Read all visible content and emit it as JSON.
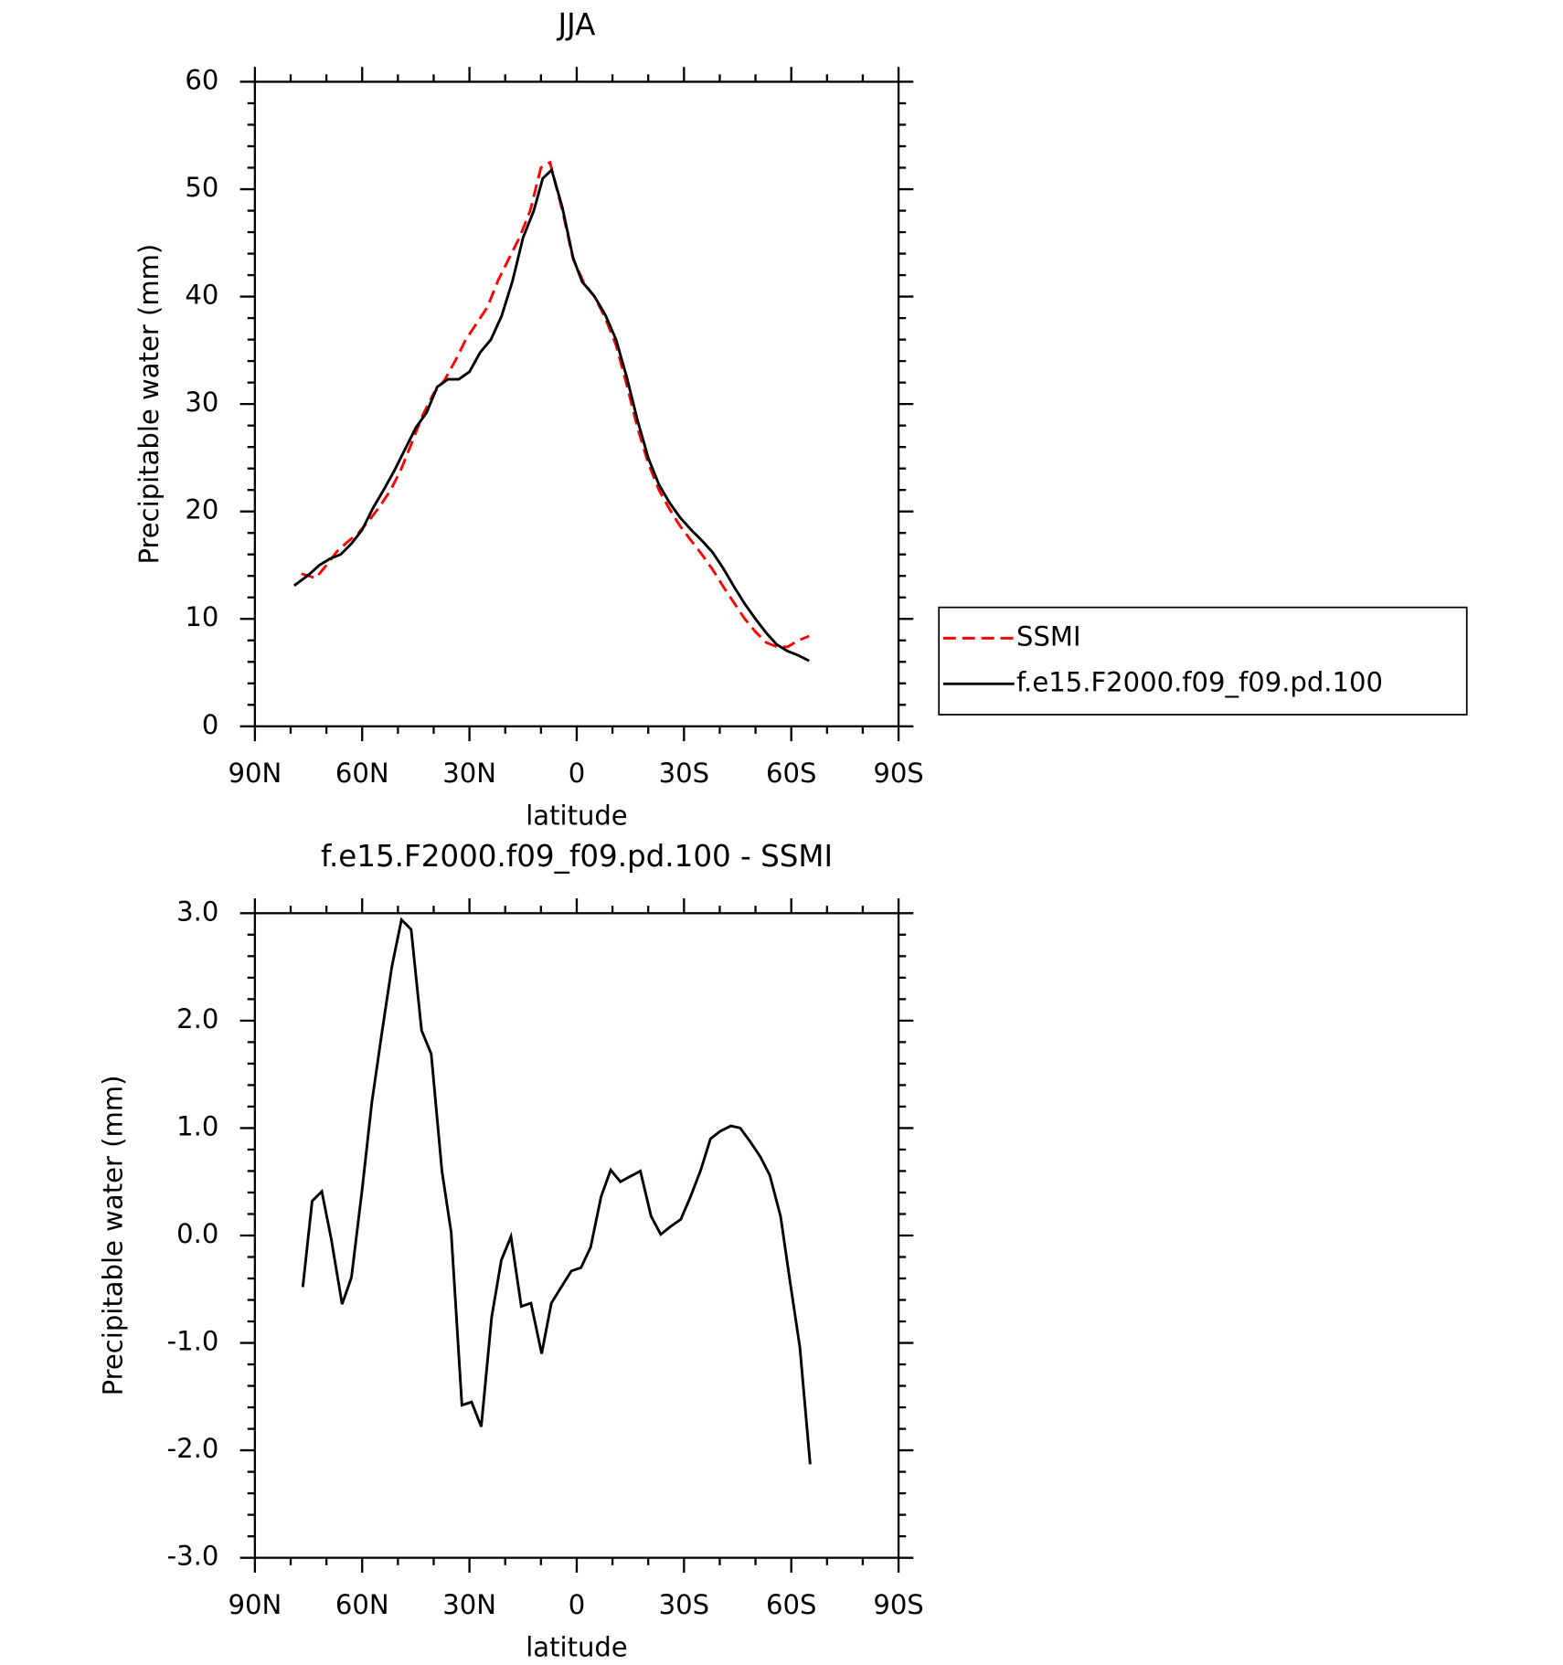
{
  "chart_data": [
    {
      "type": "line",
      "title": "JJA",
      "xlabel": "latitude",
      "ylabel": "Precipitable water (mm)",
      "xlim": [
        90,
        -90
      ],
      "xticks": [
        {
          "value": 90,
          "label": "90N"
        },
        {
          "value": 60,
          "label": "60N"
        },
        {
          "value": 30,
          "label": "30N"
        },
        0,
        {
          "value": -30,
          "label": "30S"
        },
        {
          "value": -60,
          "label": "60S"
        },
        {
          "value": -90,
          "label": "90S"
        }
      ],
      "xminorticks": [
        80,
        70,
        50,
        40,
        20,
        10,
        -10,
        -20,
        -40,
        -50,
        -70,
        -80
      ],
      "ylim": [
        0,
        60
      ],
      "yticks": [
        0,
        10,
        20,
        30,
        40,
        50,
        60
      ],
      "yminorticks": [
        2,
        4,
        6,
        8,
        12,
        14,
        16,
        18,
        22,
        24,
        26,
        28,
        32,
        34,
        36,
        38,
        42,
        44,
        46,
        48,
        52,
        54,
        56,
        58
      ],
      "legend": "right",
      "series": [
        {
          "name": "SSMI",
          "color": "#ff0000",
          "linestyle": "dashed",
          "x": [
            77,
            73,
            70,
            67,
            64,
            61,
            58,
            55,
            52,
            49,
            46,
            43,
            40,
            37,
            34,
            31,
            28,
            25,
            22,
            19,
            16,
            13,
            10,
            7.5,
            4,
            1,
            -2,
            -5,
            -8,
            -11,
            -14,
            -17,
            -20,
            -23,
            -26,
            -29,
            -32,
            -35,
            -38,
            -41,
            -44,
            -47,
            -50,
            -53,
            -56,
            -59,
            -62,
            -65
          ],
          "values": [
            14.2,
            13.8,
            15.0,
            16.3,
            17.2,
            18.0,
            19.2,
            20.5,
            22.0,
            24.0,
            26.5,
            29.0,
            31.0,
            32.2,
            34.0,
            36.0,
            37.5,
            39.0,
            41.5,
            43.5,
            45.5,
            48.0,
            52.0,
            52.5,
            48.0,
            43.5,
            41.3,
            40.0,
            38.0,
            35.5,
            31.8,
            27.8,
            24.5,
            22.0,
            20.2,
            18.6,
            17.3,
            16.0,
            14.6,
            13.0,
            11.5,
            10.0,
            8.8,
            7.8,
            7.4,
            7.4,
            8.0,
            8.4
          ]
        },
        {
          "name": "f.e15.F2000.f09_f09.pd.100",
          "color": "#000000",
          "linestyle": "solid",
          "x": [
            79,
            75,
            72,
            69,
            66,
            63,
            60,
            57,
            54,
            51,
            48,
            45,
            42,
            39,
            36,
            33,
            30,
            27,
            24,
            21,
            18,
            15,
            12,
            9.5,
            7,
            4,
            1,
            -1.5,
            -5,
            -8,
            -11,
            -14,
            -17,
            -20,
            -23,
            -26,
            -29,
            -32,
            -35,
            -38,
            -41,
            -44,
            -47,
            -50,
            -53,
            -56,
            -59,
            -62,
            -65
          ],
          "values": [
            13.1,
            14.1,
            15.0,
            15.6,
            16.0,
            17.0,
            18.3,
            20.3,
            22.0,
            23.8,
            25.8,
            27.8,
            29.2,
            31.6,
            32.3,
            32.3,
            33.0,
            34.8,
            36.0,
            38.2,
            41.4,
            45.5,
            48.0,
            51.0,
            51.8,
            48.3,
            43.6,
            41.4,
            40.0,
            38.3,
            36.0,
            32.5,
            28.5,
            25.0,
            22.5,
            20.8,
            19.4,
            18.3,
            17.3,
            16.2,
            14.7,
            13.0,
            11.4,
            10.0,
            8.7,
            7.6,
            7.0,
            6.6,
            6.1
          ]
        }
      ]
    },
    {
      "type": "line",
      "title": "f.e15.F2000.f09_f09.pd.100 - SSMI",
      "xlabel": "latitude",
      "ylabel": "Precipitable water (mm)",
      "xlim": [
        90,
        -90
      ],
      "xticks": [
        {
          "value": 90,
          "label": "90N"
        },
        {
          "value": 60,
          "label": "60N"
        },
        {
          "value": 30,
          "label": "30N"
        },
        0,
        {
          "value": -30,
          "label": "30S"
        },
        {
          "value": -60,
          "label": "60S"
        },
        {
          "value": -90,
          "label": "90S"
        }
      ],
      "xminorticks": [
        80,
        70,
        50,
        40,
        20,
        10,
        -10,
        -20,
        -40,
        -50,
        -70,
        -80
      ],
      "ylim": [
        -3,
        3
      ],
      "yticks": [
        {
          "value": -3,
          "label": "-3.0"
        },
        {
          "value": -2,
          "label": "-2.0"
        },
        {
          "value": -1,
          "label": "-1.0"
        },
        {
          "value": 0,
          "label": "0.0"
        },
        {
          "value": 1,
          "label": "1.0"
        },
        {
          "value": 2,
          "label": "2.0"
        },
        {
          "value": 3,
          "label": "3.0"
        }
      ],
      "yminorticks": [
        -2.8,
        -2.6,
        -2.4,
        -2.2,
        -1.8,
        -1.6,
        -1.4,
        -1.2,
        -0.8,
        -0.6,
        -0.4,
        -0.2,
        0.2,
        0.4,
        0.6,
        0.8,
        1.2,
        1.4,
        1.6,
        1.8,
        2.2,
        2.4,
        2.6,
        2.8
      ],
      "series": [
        {
          "color": "#000000",
          "linestyle": "solid",
          "x": [
            76.6,
            74.0,
            71.3,
            68.6,
            65.6,
            63.0,
            60.0,
            57.3,
            54.4,
            51.7,
            49.0,
            46.3,
            43.4,
            40.7,
            37.7,
            35.1,
            32.1,
            29.4,
            26.7,
            23.8,
            21.1,
            18.4,
            15.5,
            12.8,
            9.8,
            7.1,
            4.5,
            1.5,
            -1.2,
            -3.9,
            -6.8,
            -9.5,
            -12.2,
            -17.8,
            -20.8,
            -23.5,
            -26.1,
            -29.1,
            -31.8,
            -34.7,
            -37.4,
            -40.1,
            -43.1,
            -45.7,
            -48.4,
            -51.4,
            -54.0,
            -57.0,
            -59.7,
            -62.4,
            -65.3
          ],
          "values": [
            -0.48,
            0.32,
            0.41,
            -0.04,
            -0.64,
            -0.39,
            0.43,
            1.24,
            1.91,
            2.5,
            2.94,
            2.85,
            1.91,
            1.69,
            0.6,
            0.03,
            -1.58,
            -1.55,
            -1.78,
            -0.76,
            -0.23,
            -0.01,
            -0.66,
            -0.63,
            -1.1,
            -0.63,
            -0.49,
            -0.33,
            -0.3,
            -0.11,
            0.36,
            0.61,
            0.5,
            0.6,
            0.18,
            0.01,
            0.08,
            0.15,
            0.36,
            0.61,
            0.9,
            0.97,
            1.02,
            1.0,
            0.88,
            0.73,
            0.56,
            0.18,
            -0.44,
            -1.04,
            -2.13
          ]
        }
      ]
    }
  ]
}
